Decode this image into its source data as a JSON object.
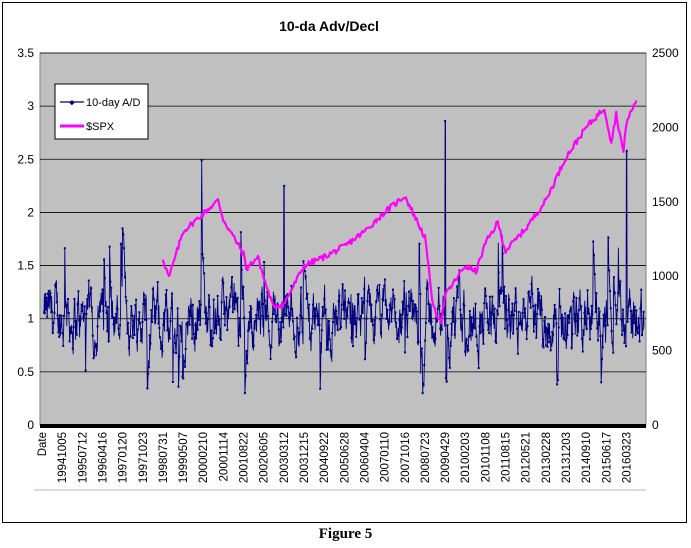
{
  "chart_data": {
    "type": "line",
    "title": "10-da Adv/Decl",
    "xlabel": "",
    "ylabel": "",
    "y_left": {
      "min": 0,
      "max": 3.5,
      "ticks": [
        "0",
        "0.5",
        "1",
        "1.5",
        "2",
        "2.5",
        "3",
        "3.5"
      ]
    },
    "y_right": {
      "min": 0,
      "max": 2500,
      "ticks": [
        "0",
        "500",
        "1000",
        "1500",
        "2000",
        "2500"
      ]
    },
    "x_ticks": [
      "Date",
      "19941005",
      "19950712",
      "19960416",
      "19970120",
      "19971023",
      "19980731",
      "19990507",
      "20000210",
      "20001114",
      "20010822",
      "20020605",
      "20030312",
      "20031215",
      "20040922",
      "20050628",
      "20060404",
      "20070110",
      "20071016",
      "20080723",
      "20090429",
      "20100203",
      "20101108",
      "20110815",
      "20120521",
      "20130228",
      "20131203",
      "20140910",
      "20150617",
      "20160323"
    ],
    "grid": true,
    "legend": "top-left",
    "plot_background": "#c0c0c0",
    "series": [
      {
        "name": "10-day A/D",
        "color": "#000080",
        "axis": "left",
        "style": "line-with-point-markers",
        "baseline": 1.0,
        "typical_range": [
          0.4,
          1.9
        ],
        "notable_peaks": [
          {
            "x": "19970120",
            "y": 1.85
          },
          {
            "x": "20030312",
            "y": 2.25
          },
          {
            "x": "20090429",
            "y": 2.86
          },
          {
            "x": "20160323",
            "y": 2.58
          }
        ]
      },
      {
        "name": "$SPX",
        "color": "#ff00ff",
        "axis": "right",
        "x_start": "19980731",
        "points": [
          {
            "x": "19980731",
            "y": 1120
          },
          {
            "x": "19981023",
            "y": 990
          },
          {
            "x": "19990507",
            "y": 1300
          },
          {
            "x": "20000210",
            "y": 1420
          },
          {
            "x": "20000901",
            "y": 1510
          },
          {
            "x": "20001114",
            "y": 1380
          },
          {
            "x": "20010822",
            "y": 1150
          },
          {
            "x": "20011001",
            "y": 1050
          },
          {
            "x": "20020315",
            "y": 1130
          },
          {
            "x": "20020605",
            "y": 990
          },
          {
            "x": "20021009",
            "y": 800
          },
          {
            "x": "20030312",
            "y": 810
          },
          {
            "x": "20031215",
            "y": 1070
          },
          {
            "x": "20040922",
            "y": 1130
          },
          {
            "x": "20050628",
            "y": 1200
          },
          {
            "x": "20060404",
            "y": 1300
          },
          {
            "x": "20070110",
            "y": 1430
          },
          {
            "x": "20071016",
            "y": 1540
          },
          {
            "x": "20080723",
            "y": 1260
          },
          {
            "x": "20081120",
            "y": 780
          },
          {
            "x": "20090309",
            "y": 700
          },
          {
            "x": "20090429",
            "y": 870
          },
          {
            "x": "20100203",
            "y": 1070
          },
          {
            "x": "20100701",
            "y": 1030
          },
          {
            "x": "20101108",
            "y": 1220
          },
          {
            "x": "20110429",
            "y": 1360
          },
          {
            "x": "20110815",
            "y": 1170
          },
          {
            "x": "20120521",
            "y": 1320
          },
          {
            "x": "20130228",
            "y": 1510
          },
          {
            "x": "20131203",
            "y": 1800
          },
          {
            "x": "20140910",
            "y": 2000
          },
          {
            "x": "20150521",
            "y": 2130
          },
          {
            "x": "20150825",
            "y": 1900
          },
          {
            "x": "20151101",
            "y": 2090
          },
          {
            "x": "20160211",
            "y": 1830
          },
          {
            "x": "20160323",
            "y": 2040
          },
          {
            "x": "20160810",
            "y": 2180
          }
        ]
      }
    ]
  },
  "caption": "Figure 5"
}
